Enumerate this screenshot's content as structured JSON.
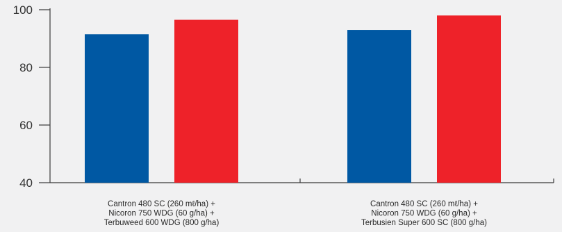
{
  "chart_data": {
    "type": "bar",
    "categories": [
      [
        "Cantron 480 SC (260 mℓ/ha) +",
        "Nicoron 750 WDG (60 g/ha) +",
        "Terbuweed 600 WDG (800 g/ha)"
      ],
      [
        "Cantron 480 SC (260 mℓ/ha) +",
        "Nicoron 750 WDG (60 g/ha) +",
        "Terbusien Super 600 SC (800 g/ha)"
      ]
    ],
    "series": [
      {
        "values": [
          91.5,
          93
        ]
      },
      {
        "values": [
          96.5,
          98
        ]
      }
    ],
    "colors": [
      "#0058a3",
      "#ee2229"
    ],
    "ylim": [
      40,
      100
    ],
    "yticks": [
      40,
      60,
      80,
      100
    ],
    "title": "",
    "xlabel": "",
    "ylabel": "",
    "grid": false
  }
}
